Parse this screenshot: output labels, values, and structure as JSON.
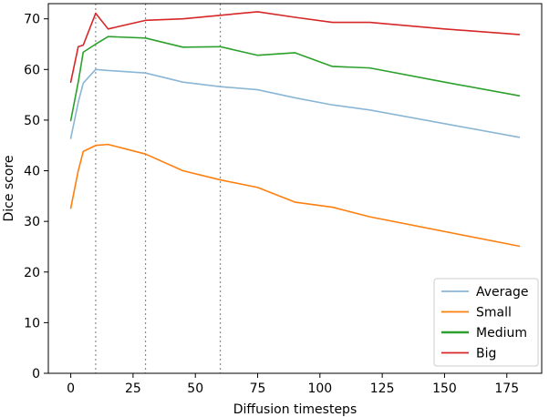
{
  "chart_data": {
    "type": "line",
    "title": "",
    "xlabel": "Diffusion timesteps",
    "ylabel": "Dice score",
    "xlim": [
      -9,
      189
    ],
    "ylim": [
      0,
      73
    ],
    "xticks": [
      0,
      25,
      50,
      75,
      100,
      125,
      150,
      175
    ],
    "yticks": [
      0,
      10,
      20,
      30,
      40,
      50,
      60,
      70
    ],
    "xtick_labels": [
      "0",
      "25",
      "50",
      "75",
      "100",
      "125",
      "150",
      "175"
    ],
    "ytick_labels": [
      "0",
      "10",
      "20",
      "30",
      "40",
      "50",
      "60",
      "70"
    ],
    "reference_lines_x": [
      10,
      30,
      60
    ],
    "legend_position": "lower-right",
    "grid": false,
    "x": [
      0,
      3,
      5,
      10,
      15,
      30,
      45,
      60,
      75,
      90,
      105,
      120,
      150,
      180
    ],
    "series": [
      {
        "name": "Average",
        "color": "#8ab6d6",
        "values": [
          46.4,
          53.5,
          57.3,
          60.0,
          59.8,
          59.3,
          57.5,
          56.6,
          56.0,
          54.4,
          53.0,
          52.0,
          49.3,
          46.6
        ]
      },
      {
        "name": "Small",
        "color": "#ff7f0e",
        "values": [
          32.6,
          40.0,
          43.8,
          45.0,
          45.2,
          43.3,
          40.0,
          38.2,
          36.7,
          33.8,
          32.8,
          30.9,
          28.0,
          25.1
        ]
      },
      {
        "name": "Medium",
        "color": "#2ca02c",
        "values": [
          49.9,
          57.5,
          63.4,
          65.0,
          66.5,
          66.2,
          64.4,
          64.5,
          62.8,
          63.3,
          60.6,
          60.3,
          57.5,
          54.8
        ]
      },
      {
        "name": "Big",
        "color": "#d62728",
        "values": [
          57.5,
          64.5,
          64.8,
          71.1,
          68.0,
          69.7,
          70.0,
          70.7,
          71.4,
          70.3,
          69.3,
          69.3,
          68.0,
          66.9
        ]
      }
    ]
  }
}
